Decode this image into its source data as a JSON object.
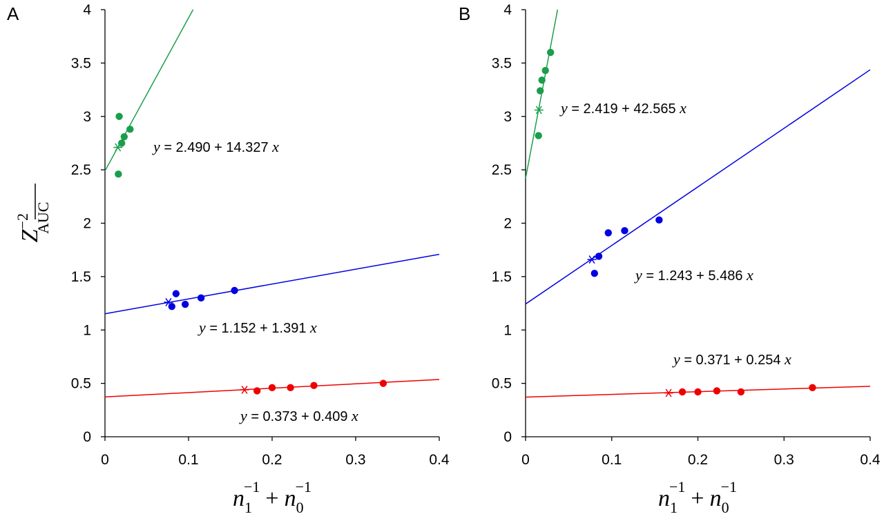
{
  "colors": {
    "green": "#1a9e4b",
    "blue": "#0000e0",
    "red": "#ee0000",
    "axis": "#000000"
  },
  "ylabel": {
    "main": "Z",
    "sup": "−2",
    "sub": "AUC"
  },
  "xlabel": {
    "n1": "n",
    "sub1": "1",
    "sup1": "−1",
    "plus": "+",
    "n0": "n",
    "sub0": "0",
    "sup0": "−1"
  },
  "chart_data": [
    {
      "type": "scatter",
      "panel": "A",
      "xlim": [
        0,
        0.4
      ],
      "ylim": [
        0,
        4
      ],
      "xticks": [
        "0",
        "0.1",
        "0.2",
        "0.3",
        "0.4"
      ],
      "yticks": [
        "0",
        "0.5",
        "1",
        "1.5",
        "2",
        "2.5",
        "3",
        "3.5",
        "4"
      ],
      "series": [
        {
          "color": "green",
          "points": [
            [
              0.016,
              2.46
            ],
            [
              0.017,
              3.0
            ],
            [
              0.02,
              2.75
            ],
            [
              0.023,
              2.81
            ],
            [
              0.03,
              2.88
            ]
          ],
          "star": [
            0.0155,
            2.71
          ],
          "intercept": 2.49,
          "slope": 14.327,
          "equation": {
            "y": "y",
            "eq": " = 2.490 + 14.327 ",
            "x": "x"
          }
        },
        {
          "color": "blue",
          "points": [
            [
              0.08,
              1.22
            ],
            [
              0.085,
              1.34
            ],
            [
              0.096,
              1.24
            ],
            [
              0.115,
              1.3
            ],
            [
              0.155,
              1.37
            ]
          ],
          "star": [
            0.076,
            1.26
          ],
          "intercept": 1.152,
          "slope": 1.391,
          "equation": {
            "y": "y",
            "eq": " = 1.152 + 1.391 ",
            "x": "x"
          }
        },
        {
          "color": "red",
          "points": [
            [
              0.182,
              0.43
            ],
            [
              0.2,
              0.46
            ],
            [
              0.222,
              0.46
            ],
            [
              0.25,
              0.48
            ],
            [
              0.333,
              0.5
            ]
          ],
          "star": [
            0.167,
            0.44
          ],
          "intercept": 0.373,
          "slope": 0.409,
          "equation": {
            "y": "y",
            "eq": " = 0.373 + 0.409 ",
            "x": "x"
          }
        }
      ]
    },
    {
      "type": "scatter",
      "panel": "B",
      "xlim": [
        0,
        0.4
      ],
      "ylim": [
        0,
        4
      ],
      "xticks": [
        "0",
        "0.1",
        "0.2",
        "0.3",
        "0.4"
      ],
      "yticks": [
        "0",
        "0.5",
        "1",
        "1.5",
        "2",
        "2.5",
        "3",
        "3.5",
        "4"
      ],
      "series": [
        {
          "color": "green",
          "points": [
            [
              0.015,
              2.82
            ],
            [
              0.017,
              3.24
            ],
            [
              0.019,
              3.34
            ],
            [
              0.023,
              3.43
            ],
            [
              0.029,
              3.6
            ]
          ],
          "star": [
            0.0155,
            3.06
          ],
          "intercept": 2.419,
          "slope": 42.565,
          "equation": {
            "y": "y",
            "eq": " = 2.419 + 42.565 ",
            "x": "x"
          }
        },
        {
          "color": "blue",
          "points": [
            [
              0.08,
              1.53
            ],
            [
              0.085,
              1.69
            ],
            [
              0.096,
              1.91
            ],
            [
              0.115,
              1.93
            ],
            [
              0.155,
              2.03
            ]
          ],
          "star": [
            0.077,
            1.66
          ],
          "intercept": 1.243,
          "slope": 5.486,
          "equation": {
            "y": "y",
            "eq": " = 1.243 + 5.486 ",
            "x": "x"
          }
        },
        {
          "color": "red",
          "points": [
            [
              0.182,
              0.42
            ],
            [
              0.2,
              0.42
            ],
            [
              0.222,
              0.43
            ],
            [
              0.25,
              0.42
            ],
            [
              0.333,
              0.46
            ]
          ],
          "star": [
            0.166,
            0.41
          ],
          "intercept": 0.371,
          "slope": 0.254,
          "equation": {
            "y": "y",
            "eq": " = 0.371 + 0.254 ",
            "x": "x"
          }
        }
      ]
    }
  ]
}
